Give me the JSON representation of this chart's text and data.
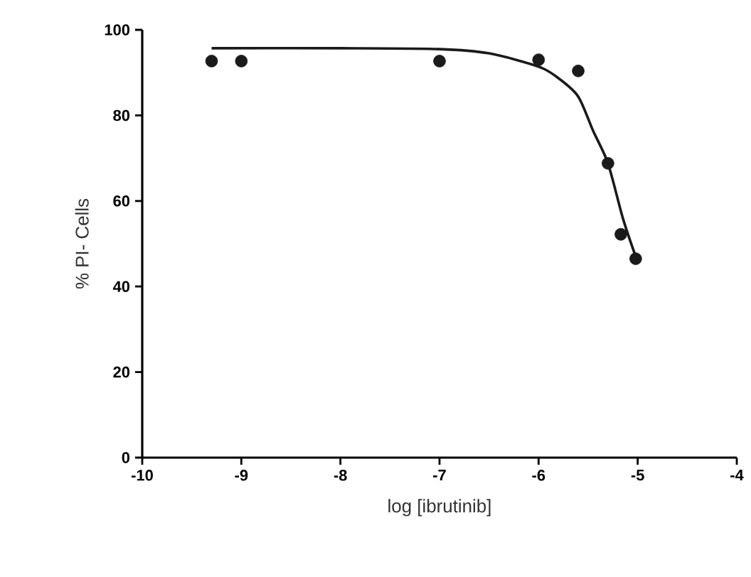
{
  "chart_data": {
    "type": "scatter",
    "xlabel": "log [ibrutinib]",
    "ylabel": "% PI- Cells",
    "xlim": [
      -10,
      -4
    ],
    "ylim": [
      0,
      100
    ],
    "xticks": [
      -10,
      -9,
      -8,
      -7,
      -6,
      -5,
      -4
    ],
    "yticks": [
      0,
      20,
      40,
      60,
      80,
      100
    ],
    "grid": false,
    "series": [
      {
        "color": "#1a1a1a",
        "marker": "circle",
        "x": [
          -9.3,
          -9.0,
          -7.0,
          -6.0,
          -5.6,
          -5.3,
          -5.17,
          -5.02
        ],
        "values": [
          92.7,
          92.7,
          92.7,
          93,
          90.4,
          68.8,
          52.2,
          46.5
        ]
      },
      {
        "type": "line",
        "color": "#1a1a1a",
        "marker": "none",
        "line_style": "solid",
        "x": [
          -9.3,
          -8,
          -7,
          -6.5,
          -6,
          -5.8,
          -5.6,
          -5.45,
          -5.3,
          -5.15,
          -5.02
        ],
        "values": [
          95.7,
          95.7,
          95.5,
          94.5,
          91.4,
          88.7,
          84.4,
          76.4,
          68.8,
          56,
          47
        ]
      }
    ]
  }
}
